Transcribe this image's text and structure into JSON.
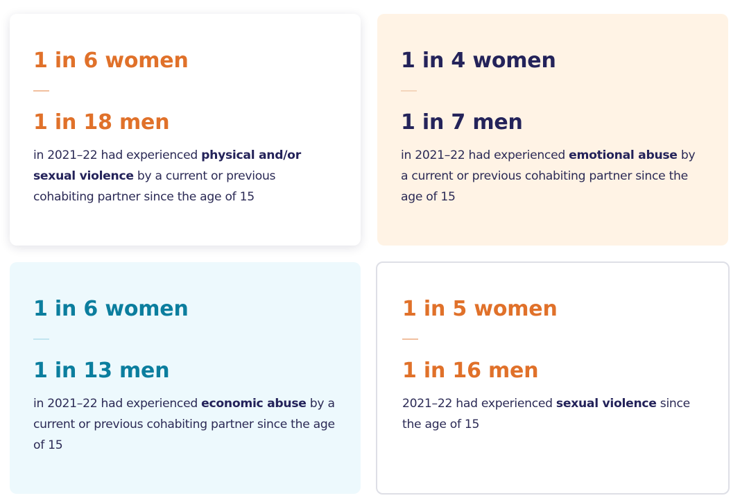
{
  "colors": {
    "orange": "#e0712a",
    "navy": "#24235a",
    "teal": "#0b7e9e",
    "text": "#2b2a55"
  },
  "cards": [
    {
      "women": "1 in 6 women",
      "men": "1 in 18 men",
      "desc_before": "in 2021–22 had experienced ",
      "desc_bold": "physical and/or sexual violence",
      "desc_after": " by a current or previous cohabiting partner since the age of 15"
    },
    {
      "women": "1 in 4 women",
      "men": "1 in 7 men",
      "desc_before": "in 2021–22 had experienced ",
      "desc_bold": "emotional abuse",
      "desc_after": " by a current or previous cohabiting partner since the age of 15"
    },
    {
      "women": "1 in 6 women",
      "men": "1 in 13 men",
      "desc_before": "in 2021–22 had experienced ",
      "desc_bold": "economic abuse",
      "desc_after": " by a current or previous cohabiting partner since the age of 15"
    },
    {
      "women": "1 in 5 women",
      "men": "1 in 16 men",
      "desc_before": "2021–22 had experienced ",
      "desc_bold": "sexual violence",
      "desc_after": " since the age of 15"
    }
  ]
}
